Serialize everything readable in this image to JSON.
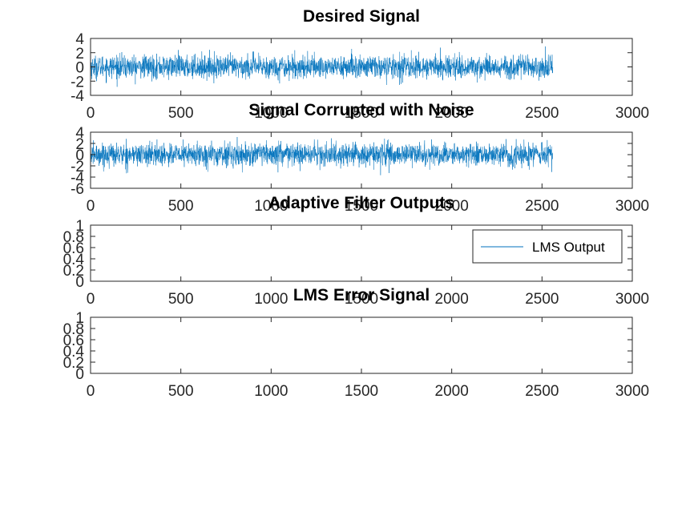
{
  "colors": {
    "series": "#0072BD",
    "axis": "#262626",
    "background": "#ffffff"
  },
  "chart_data": [
    {
      "type": "line",
      "title": "Desired Signal",
      "xlabel": "",
      "ylabel": "",
      "xlim": [
        0,
        3000
      ],
      "ylim": [
        -4,
        4
      ],
      "xticks": [
        0,
        500,
        1000,
        1500,
        2000,
        2500,
        3000
      ],
      "yticks": [
        -4,
        -2,
        0,
        2,
        4
      ],
      "grid": false,
      "series": [
        {
          "n_samples": 2560,
          "y_min": -3.2,
          "y_max": 3.2,
          "mean": 0.0,
          "std": 0.8,
          "description": "noisy random signal, approximately zero-mean"
        }
      ]
    },
    {
      "type": "line",
      "title": "Signal Corrupted with Noise",
      "xlabel": "",
      "ylabel": "",
      "xlim": [
        0,
        3000
      ],
      "ylim": [
        -6,
        4
      ],
      "xticks": [
        0,
        500,
        1000,
        1500,
        2000,
        2500,
        3000
      ],
      "yticks": [
        -6,
        -4,
        -2,
        0,
        2,
        4
      ],
      "grid": false,
      "series": [
        {
          "n_samples": 2560,
          "y_min": -4.3,
          "y_max": 3.5,
          "mean": 0.0,
          "std": 1.0,
          "description": "noisy random signal, approximately zero-mean"
        }
      ]
    },
    {
      "type": "line",
      "title": "Adaptive Filter Outputs",
      "xlabel": "",
      "ylabel": "",
      "xlim": [
        0,
        3000
      ],
      "ylim": [
        0,
        1
      ],
      "xticks": [
        0,
        500,
        1000,
        1500,
        2000,
        2500,
        3000
      ],
      "yticks": [
        0,
        0.2,
        0.4,
        0.6,
        0.8,
        1
      ],
      "grid": false,
      "legend": {
        "position": "top-right",
        "entries": [
          "LMS Output"
        ]
      },
      "series": [
        {
          "name": "LMS Output",
          "values": []
        }
      ]
    },
    {
      "type": "line",
      "title": "LMS Error Signal",
      "xlabel": "",
      "ylabel": "",
      "xlim": [
        0,
        3000
      ],
      "ylim": [
        0,
        1
      ],
      "xticks": [
        0,
        500,
        1000,
        1500,
        2000,
        2500,
        3000
      ],
      "yticks": [
        0,
        0.2,
        0.4,
        0.6,
        0.8,
        1
      ],
      "grid": false,
      "series": []
    }
  ]
}
